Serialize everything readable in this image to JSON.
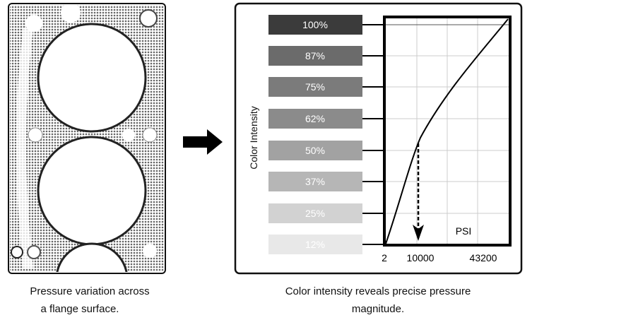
{
  "left_panel": {
    "caption_line1": "Pressure variation across",
    "caption_line2": "a flange surface."
  },
  "arrow_icon": "right-arrow",
  "right_panel": {
    "caption_line1": "Color intensity reveals precise pressure",
    "caption_line2": "magnitude.",
    "y_axis_label": "Color Intensity",
    "x_unit_label": "PSI",
    "x_tick_labels": [
      "2",
      "10000",
      "43200"
    ],
    "swatches": [
      {
        "label": "100%",
        "color": "#3b3b3b"
      },
      {
        "label": "87%",
        "color": "#6b6b6b"
      },
      {
        "label": "75%",
        "color": "#7b7b7b"
      },
      {
        "label": "62%",
        "color": "#8b8b8b"
      },
      {
        "label": "50%",
        "color": "#a2a2a2"
      },
      {
        "label": "37%",
        "color": "#b6b6b6"
      },
      {
        "label": "25%",
        "color": "#d2d2d2"
      },
      {
        "label": "12%",
        "color": "#e8e8e8"
      }
    ]
  }
}
